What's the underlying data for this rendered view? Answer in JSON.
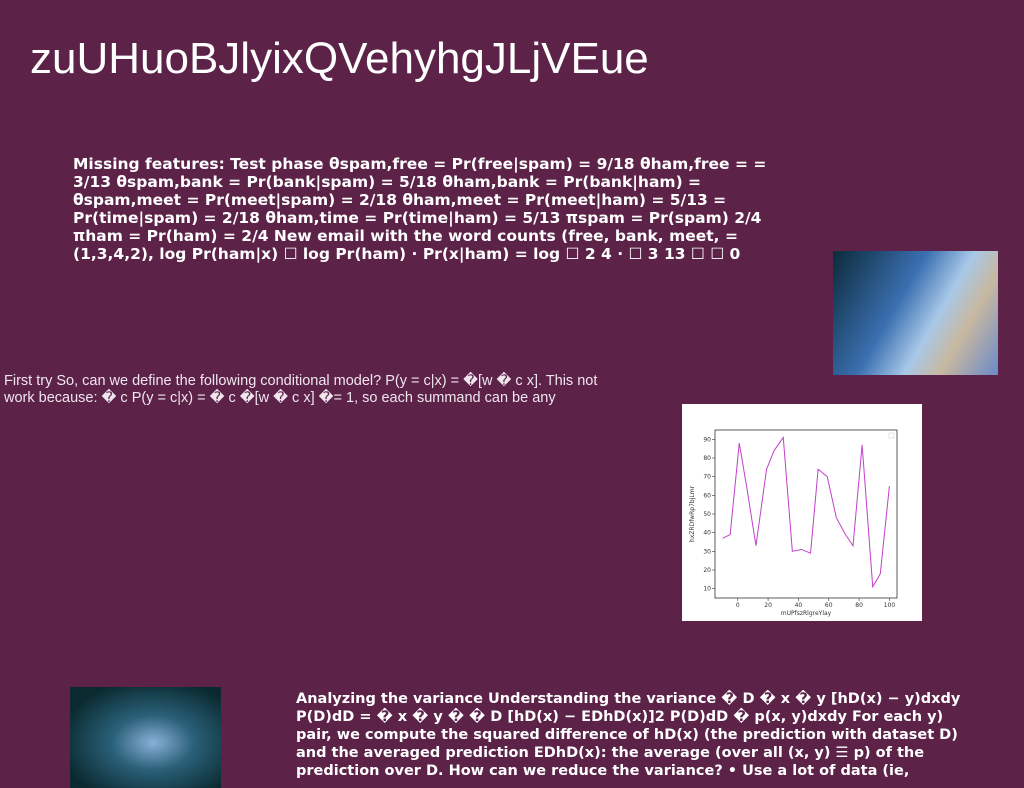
{
  "title": "zuUHuoBJlyixQVehyhgJLjVEue",
  "blocks": [
    "Missing features: Test phase θspam,free = Pr(free|spam) = 9/18 θham,free = = 3/13 θspam,bank = Pr(bank|spam) = 5/18 θham,bank = Pr(bank|ham) = θspam,meet = Pr(meet|spam) = 2/18 θham,meet = Pr(meet|ham) = 5/13 = Pr(time|spam) = 2/18 θham,time = Pr(time|ham) = 5/13 πspam = Pr(spam) 2/4 πham = Pr(ham) = 2/4 New email with the word counts (free, bank, meet, = (1,3,4,2), log Pr(ham|x) ☐ log Pr(ham) · Pr(x|ham) = log ☐ 2 4 · ☐ 3 13 ☐ ☐ 0",
    "First try So, can we define the following conditional model? P(y = c|x) = �[w � c x]. This not work because: � c P(y = c|x) = � c �[w � c x] �= 1, so each summand can be any",
    "Analyzing the variance Understanding the variance � D � x � y [hD(x) − y)dxdy P(D)dD = � x � y � � D [hD(x) − EDhD(x)]2 P(D)dD � p(x, y)dxdy For each y) pair, we compute the squared difference of hD(x) (the prediction with dataset D) and the averaged prediction EDhD(x): the average (over all (x, y) ☰ p) of the prediction over D. How can we reduce the variance? • Use a lot of data (ie,"
  ],
  "chart_data": {
    "type": "line",
    "x_label": "mUPfszRlgreYlay",
    "y_label": "hxZRDfwRp7bjLmr",
    "x": [
      -10,
      -5,
      1,
      6,
      12,
      19,
      24,
      30,
      36,
      42,
      48,
      53,
      59,
      65,
      71,
      76,
      82,
      89,
      94,
      100
    ],
    "series": [
      {
        "color": "#c040c8",
        "values": [
          37,
          39,
          88,
          64,
          33,
          74,
          84,
          91,
          30,
          31,
          29,
          74,
          70,
          48,
          39,
          33,
          87,
          11,
          18,
          65
        ]
      }
    ],
    "xlim": [
      -15,
      105
    ],
    "ylim": [
      5,
      95
    ],
    "xticks": [
      0,
      20,
      40,
      60,
      80,
      100
    ],
    "yticks": [
      10,
      20,
      30,
      40,
      50,
      60,
      70,
      80,
      90
    ]
  }
}
